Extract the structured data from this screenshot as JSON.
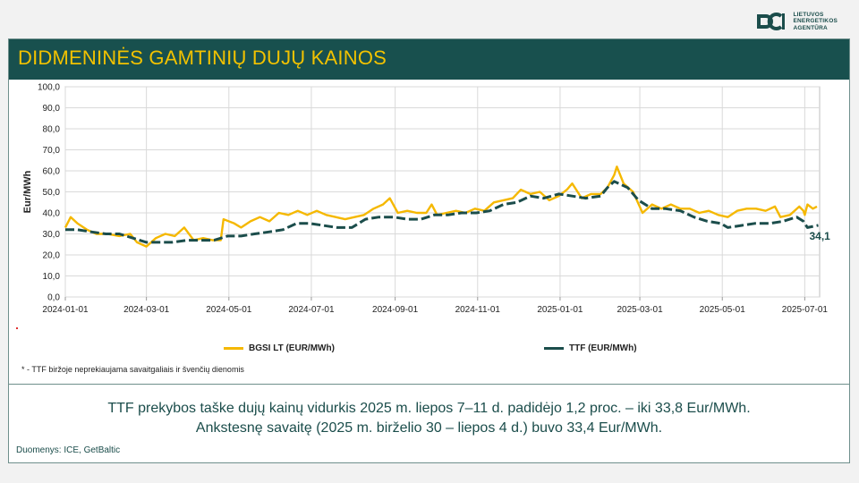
{
  "logo": {
    "line1": "LIETUVOS",
    "line2": "ENERGETIKOS",
    "line3": "AGENTŪRA",
    "icon": "lea-logo-icon",
    "color": "#1b4d4b"
  },
  "title": "DIDMENINĖS GAMTINIŲ DUJŲ KAINOS",
  "footnote": "* - TTF biržoje neprekiaujama savaitgaliais ir švenčių dienomis",
  "summary": {
    "line1": "TTF prekybos taške dujų kainų vidurkis 2025 m. liepos 7–11 d. padidėjo 1,2 proc. – iki 33,8 Eur/MWh.",
    "line2": "Ankstesnę savaitę (2025 m. birželio 30 – liepos 4 d.) buvo 33,4 Eur/MWh."
  },
  "source": "Duomenys: ICE, GetBaltic",
  "colors": {
    "title_bar": "#18504e",
    "title_text": "#f2c200",
    "bgsi": "#f5b800",
    "ttf": "#1b4d4b"
  },
  "chart_data": {
    "type": "line",
    "title": "",
    "xlabel": "",
    "ylabel": "Eur/MWh",
    "xlim": [
      "2024-01-01",
      "2025-07-12"
    ],
    "ylim": [
      0,
      100
    ],
    "y_ticks": [
      "100,0",
      "90,0",
      "80,0",
      "70,0",
      "60,0",
      "50,0",
      "40,0",
      "30,0",
      "20,0",
      "10,0",
      "0,0"
    ],
    "x_ticks": [
      {
        "date": "2024-01-01",
        "label": "2024-01-01"
      },
      {
        "date": "2024-03-01",
        "label": "2024-03-01"
      },
      {
        "date": "2024-05-01",
        "label": "2024-05-01"
      },
      {
        "date": "2024-07-01",
        "label": "2024-07-01"
      },
      {
        "date": "2024-09-01",
        "label": "2024-09-01"
      },
      {
        "date": "2024-11-01",
        "label": "2024-11-01"
      },
      {
        "date": "2025-01-01",
        "label": "2025-01-01"
      },
      {
        "date": "2025-03-01",
        "label": "2025-03-01"
      },
      {
        "date": "2025-05-01",
        "label": "2025-05-01"
      },
      {
        "date": "2025-07-01",
        "label": "2025-07-01"
      }
    ],
    "grid": true,
    "legend": "bottom",
    "series": [
      {
        "name": "BGSI LT (EUR/MWh)",
        "style": "solid",
        "color": "#f5b800",
        "points": [
          [
            "2024-01-01",
            33
          ],
          [
            "2024-01-05",
            38
          ],
          [
            "2024-01-10",
            35
          ],
          [
            "2024-01-17",
            32
          ],
          [
            "2024-01-24",
            30
          ],
          [
            "2024-02-01",
            30
          ],
          [
            "2024-02-10",
            29
          ],
          [
            "2024-02-18",
            30
          ],
          [
            "2024-02-23",
            26
          ],
          [
            "2024-03-01",
            24
          ],
          [
            "2024-03-08",
            28
          ],
          [
            "2024-03-15",
            30
          ],
          [
            "2024-03-22",
            29
          ],
          [
            "2024-03-29",
            33
          ],
          [
            "2024-04-05",
            27
          ],
          [
            "2024-04-12",
            28
          ],
          [
            "2024-04-19",
            27
          ],
          [
            "2024-04-25",
            27
          ],
          [
            "2024-04-27",
            37
          ],
          [
            "2024-05-05",
            35
          ],
          [
            "2024-05-10",
            33
          ],
          [
            "2024-05-17",
            36
          ],
          [
            "2024-05-24",
            38
          ],
          [
            "2024-05-31",
            36
          ],
          [
            "2024-06-07",
            40
          ],
          [
            "2024-06-14",
            39
          ],
          [
            "2024-06-21",
            41
          ],
          [
            "2024-06-28",
            39
          ],
          [
            "2024-07-05",
            41
          ],
          [
            "2024-07-12",
            39
          ],
          [
            "2024-07-19",
            38
          ],
          [
            "2024-07-26",
            37
          ],
          [
            "2024-08-02",
            38
          ],
          [
            "2024-08-09",
            39
          ],
          [
            "2024-08-16",
            42
          ],
          [
            "2024-08-23",
            44
          ],
          [
            "2024-08-28",
            47
          ],
          [
            "2024-09-03",
            40
          ],
          [
            "2024-09-10",
            41
          ],
          [
            "2024-09-17",
            40
          ],
          [
            "2024-09-24",
            40
          ],
          [
            "2024-09-28",
            44
          ],
          [
            "2024-10-02",
            39
          ],
          [
            "2024-10-09",
            40
          ],
          [
            "2024-10-16",
            41
          ],
          [
            "2024-10-23",
            40
          ],
          [
            "2024-10-30",
            42
          ],
          [
            "2024-11-06",
            41
          ],
          [
            "2024-11-13",
            45
          ],
          [
            "2024-11-20",
            46
          ],
          [
            "2024-11-27",
            47
          ],
          [
            "2024-12-03",
            51
          ],
          [
            "2024-12-10",
            49
          ],
          [
            "2024-12-17",
            50
          ],
          [
            "2024-12-24",
            46
          ],
          [
            "2024-12-31",
            48
          ],
          [
            "2025-01-06",
            51
          ],
          [
            "2025-01-10",
            54
          ],
          [
            "2025-01-17",
            47
          ],
          [
            "2025-01-24",
            49
          ],
          [
            "2025-01-31",
            49
          ],
          [
            "2025-02-05",
            52
          ],
          [
            "2025-02-10",
            58
          ],
          [
            "2025-02-12",
            62
          ],
          [
            "2025-02-17",
            54
          ],
          [
            "2025-02-24",
            50
          ],
          [
            "2025-03-03",
            40
          ],
          [
            "2025-03-10",
            44
          ],
          [
            "2025-03-17",
            42
          ],
          [
            "2025-03-24",
            44
          ],
          [
            "2025-03-31",
            42
          ],
          [
            "2025-04-07",
            42
          ],
          [
            "2025-04-14",
            40
          ],
          [
            "2025-04-21",
            41
          ],
          [
            "2025-04-28",
            39
          ],
          [
            "2025-05-05",
            38
          ],
          [
            "2025-05-12",
            41
          ],
          [
            "2025-05-19",
            42
          ],
          [
            "2025-05-26",
            42
          ],
          [
            "2025-06-02",
            41
          ],
          [
            "2025-06-09",
            43
          ],
          [
            "2025-06-13",
            38
          ],
          [
            "2025-06-20",
            39
          ],
          [
            "2025-06-27",
            43
          ],
          [
            "2025-06-30",
            41
          ],
          [
            "2025-07-01",
            39
          ],
          [
            "2025-07-03",
            44
          ],
          [
            "2025-07-07",
            42
          ],
          [
            "2025-07-10",
            43
          ]
        ]
      },
      {
        "name": "TTF (EUR/MWh)",
        "style": "dashed",
        "color": "#1b4d4b",
        "points": [
          [
            "2024-01-01",
            32
          ],
          [
            "2024-01-10",
            32
          ],
          [
            "2024-01-20",
            31
          ],
          [
            "2024-01-31",
            30
          ],
          [
            "2024-02-10",
            30
          ],
          [
            "2024-02-20",
            28
          ],
          [
            "2024-03-01",
            26
          ],
          [
            "2024-03-10",
            26
          ],
          [
            "2024-03-20",
            26
          ],
          [
            "2024-03-31",
            27
          ],
          [
            "2024-04-10",
            27
          ],
          [
            "2024-04-20",
            27
          ],
          [
            "2024-04-30",
            29
          ],
          [
            "2024-05-10",
            29
          ],
          [
            "2024-05-20",
            30
          ],
          [
            "2024-05-31",
            31
          ],
          [
            "2024-06-10",
            32
          ],
          [
            "2024-06-20",
            35
          ],
          [
            "2024-06-30",
            35
          ],
          [
            "2024-07-10",
            34
          ],
          [
            "2024-07-20",
            33
          ],
          [
            "2024-07-31",
            33
          ],
          [
            "2024-08-10",
            37
          ],
          [
            "2024-08-20",
            38
          ],
          [
            "2024-08-31",
            38
          ],
          [
            "2024-09-10",
            37
          ],
          [
            "2024-09-20",
            37
          ],
          [
            "2024-09-30",
            39
          ],
          [
            "2024-10-10",
            39
          ],
          [
            "2024-10-20",
            40
          ],
          [
            "2024-10-31",
            40
          ],
          [
            "2024-11-10",
            41
          ],
          [
            "2024-11-20",
            44
          ],
          [
            "2024-11-30",
            45
          ],
          [
            "2024-12-10",
            48
          ],
          [
            "2024-12-20",
            47
          ],
          [
            "2024-12-31",
            49
          ],
          [
            "2025-01-10",
            48
          ],
          [
            "2025-01-20",
            47
          ],
          [
            "2025-01-31",
            48
          ],
          [
            "2025-02-05",
            52
          ],
          [
            "2025-02-10",
            55
          ],
          [
            "2025-02-20",
            52
          ],
          [
            "2025-02-28",
            46
          ],
          [
            "2025-03-10",
            42
          ],
          [
            "2025-03-20",
            42
          ],
          [
            "2025-03-31",
            41
          ],
          [
            "2025-04-10",
            38
          ],
          [
            "2025-04-20",
            36
          ],
          [
            "2025-04-30",
            35
          ],
          [
            "2025-05-05",
            33
          ],
          [
            "2025-05-15",
            34
          ],
          [
            "2025-05-25",
            35
          ],
          [
            "2025-06-05",
            35
          ],
          [
            "2025-06-15",
            36
          ],
          [
            "2025-06-25",
            38
          ],
          [
            "2025-06-30",
            36
          ],
          [
            "2025-07-03",
            33
          ],
          [
            "2025-07-11",
            34.1
          ]
        ]
      }
    ],
    "annotations": [
      {
        "date": "2025-07-11",
        "value": 34.1,
        "label": "34,1",
        "series": "TTF (EUR/MWh)"
      }
    ]
  }
}
